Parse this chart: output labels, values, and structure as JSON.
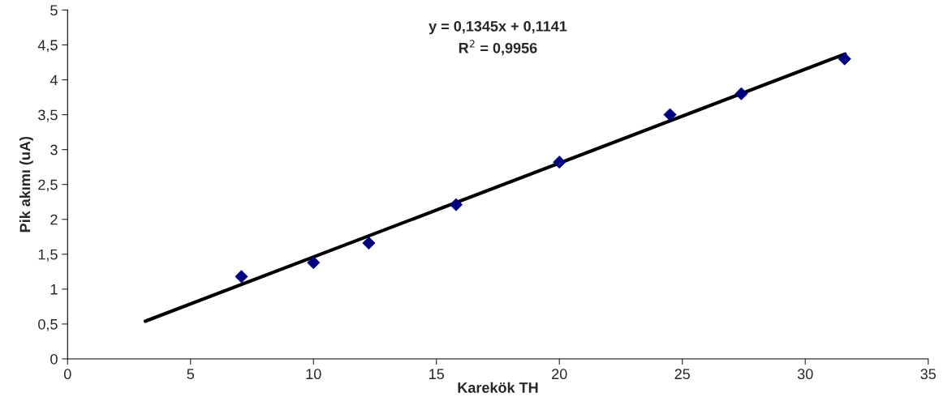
{
  "chart_data": {
    "type": "scatter",
    "xlabel": "Karekök TH",
    "ylabel": "Pik akımı (uA)",
    "annotations": [
      "y = 0,1345x + 0,1141",
      "R$^{2}$ = 0,9956"
    ],
    "x": [
      7.07,
      10,
      12.25,
      15.8,
      20,
      24.5,
      27.4,
      31.6
    ],
    "series": [
      {
        "color": "#000080",
        "marker": "diamond",
        "values": [
          1.18,
          1.38,
          1.66,
          2.21,
          2.82,
          3.5,
          3.8,
          4.3
        ]
      },
      {
        "type": "line",
        "color": "#000000",
        "marker": "none",
        "line_style": "solid",
        "x": [
          3.16,
          31.62
        ],
        "values": [
          0.54,
          4.37
        ]
      }
    ],
    "xlim": [
      0,
      35
    ],
    "xticks": [
      0,
      5,
      10,
      15,
      20,
      25,
      30,
      35
    ],
    "ylim": [
      0,
      5
    ],
    "yticks": [
      0,
      {
        "value": 0.5,
        "label": "0,5"
      },
      1,
      {
        "value": 1.5,
        "label": "1,5"
      },
      2,
      {
        "value": 2.5,
        "label": "2,5"
      },
      3,
      {
        "value": 3.5,
        "label": "3,5"
      },
      4,
      {
        "value": 4.5,
        "label": "4,5"
      },
      5
    ],
    "grid": false,
    "legend": false
  }
}
